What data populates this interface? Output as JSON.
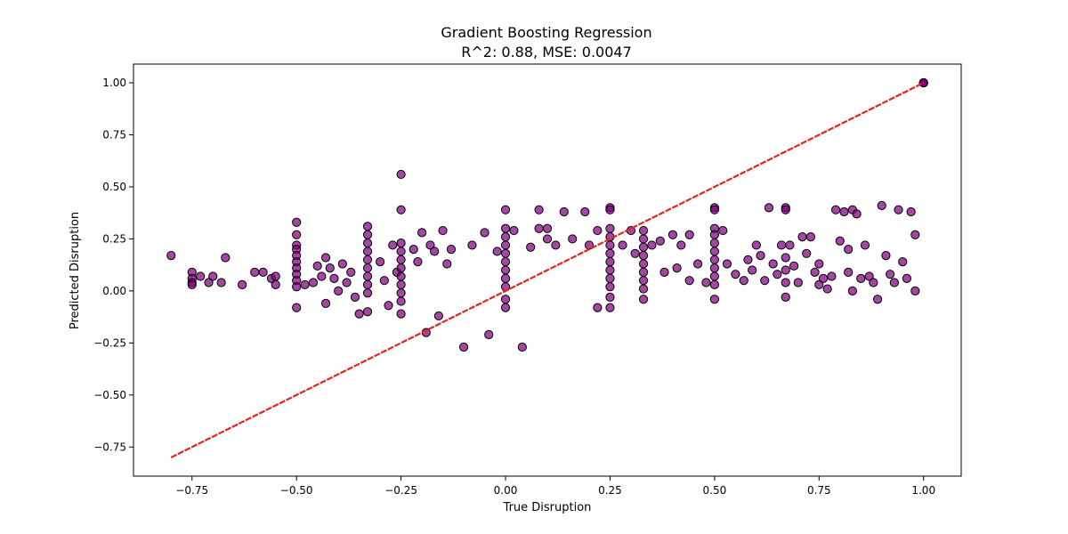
{
  "chart_data": {
    "type": "scatter",
    "title": "Gradient Boosting Regression",
    "subtitle": "R^2: 0.88, MSE: 0.0047",
    "xlabel": "True Disruption",
    "ylabel": "Predicted Disruption",
    "xlim": [
      -0.89,
      1.09
    ],
    "ylim": [
      -0.89,
      1.09
    ],
    "xticks": [
      -0.75,
      -0.5,
      -0.25,
      0.0,
      0.25,
      0.5,
      0.75,
      1.0
    ],
    "xtick_labels": [
      "−0.75",
      "−0.50",
      "−0.25",
      "0.00",
      "0.25",
      "0.50",
      "0.75",
      "1.00"
    ],
    "yticks": [
      -0.75,
      -0.5,
      -0.25,
      0.0,
      0.25,
      0.5,
      0.75,
      1.0
    ],
    "ytick_labels": [
      "−0.75",
      "−0.50",
      "−0.25",
      "0.00",
      "0.25",
      "0.50",
      "0.75",
      "1.00"
    ],
    "grid": false,
    "colors": {
      "points": "#800080",
      "point_edge": "#000000",
      "reference_line": "#e8231c"
    },
    "reference_line": {
      "x": [
        -0.8,
        1.0
      ],
      "y": [
        -0.8,
        1.0
      ],
      "style": "dashed"
    },
    "series": [
      {
        "points": [
          [
            -0.8,
            0.17
          ],
          [
            -0.75,
            0.09
          ],
          [
            -0.75,
            0.06
          ],
          [
            -0.75,
            0.04
          ],
          [
            -0.75,
            0.03
          ],
          [
            -0.73,
            0.07
          ],
          [
            -0.71,
            0.04
          ],
          [
            -0.7,
            0.07
          ],
          [
            -0.68,
            0.04
          ],
          [
            -0.67,
            0.16
          ],
          [
            -0.63,
            0.03
          ],
          [
            -0.6,
            0.09
          ],
          [
            -0.58,
            0.09
          ],
          [
            -0.56,
            0.06
          ],
          [
            -0.55,
            0.03
          ],
          [
            -0.55,
            0.07
          ],
          [
            -0.5,
            0.33
          ],
          [
            -0.5,
            0.27
          ],
          [
            -0.5,
            0.22
          ],
          [
            -0.5,
            0.2
          ],
          [
            -0.5,
            0.17
          ],
          [
            -0.5,
            0.14
          ],
          [
            -0.5,
            0.11
          ],
          [
            -0.5,
            0.08
          ],
          [
            -0.5,
            0.05
          ],
          [
            -0.5,
            0.02
          ],
          [
            -0.5,
            -0.08
          ],
          [
            -0.48,
            0.03
          ],
          [
            -0.46,
            0.04
          ],
          [
            -0.45,
            0.12
          ],
          [
            -0.44,
            0.07
          ],
          [
            -0.43,
            0.16
          ],
          [
            -0.43,
            -0.06
          ],
          [
            -0.42,
            0.11
          ],
          [
            -0.41,
            0.06
          ],
          [
            -0.4,
            0.0
          ],
          [
            -0.39,
            0.13
          ],
          [
            -0.38,
            0.04
          ],
          [
            -0.37,
            0.09
          ],
          [
            -0.36,
            -0.03
          ],
          [
            -0.33,
            0.31
          ],
          [
            -0.33,
            0.27
          ],
          [
            -0.33,
            0.23
          ],
          [
            -0.33,
            0.19
          ],
          [
            -0.33,
            0.15
          ],
          [
            -0.33,
            0.11
          ],
          [
            -0.33,
            0.07
          ],
          [
            -0.33,
            0.03
          ],
          [
            -0.33,
            -0.01
          ],
          [
            -0.33,
            -0.1
          ],
          [
            -0.35,
            -0.11
          ],
          [
            -0.3,
            0.14
          ],
          [
            -0.29,
            0.05
          ],
          [
            -0.28,
            -0.07
          ],
          [
            -0.27,
            0.22
          ],
          [
            -0.26,
            0.09
          ],
          [
            -0.25,
            0.56
          ],
          [
            -0.25,
            0.39
          ],
          [
            -0.25,
            0.23
          ],
          [
            -0.25,
            0.19
          ],
          [
            -0.25,
            0.15
          ],
          [
            -0.25,
            0.11
          ],
          [
            -0.25,
            0.07
          ],
          [
            -0.25,
            0.03
          ],
          [
            -0.25,
            -0.01
          ],
          [
            -0.25,
            -0.05
          ],
          [
            -0.25,
            -0.11
          ],
          [
            -0.22,
            0.2
          ],
          [
            -0.21,
            0.14
          ],
          [
            -0.2,
            0.28
          ],
          [
            -0.19,
            -0.2
          ],
          [
            -0.18,
            0.22
          ],
          [
            -0.17,
            0.19
          ],
          [
            -0.16,
            -0.12
          ],
          [
            -0.15,
            0.29
          ],
          [
            -0.14,
            0.13
          ],
          [
            -0.13,
            0.2
          ],
          [
            -0.1,
            -0.27
          ],
          [
            -0.08,
            0.22
          ],
          [
            -0.05,
            0.28
          ],
          [
            -0.04,
            -0.21
          ],
          [
            -0.02,
            0.19
          ],
          [
            0.0,
            0.39
          ],
          [
            0.0,
            0.3
          ],
          [
            0.0,
            0.26
          ],
          [
            0.0,
            0.22
          ],
          [
            0.0,
            0.18
          ],
          [
            0.0,
            0.14
          ],
          [
            0.0,
            0.1
          ],
          [
            0.0,
            0.06
          ],
          [
            0.0,
            0.02
          ],
          [
            0.0,
            -0.04
          ],
          [
            0.0,
            -0.08
          ],
          [
            0.02,
            0.29
          ],
          [
            0.04,
            -0.27
          ],
          [
            0.06,
            0.21
          ],
          [
            0.08,
            0.3
          ],
          [
            0.08,
            0.39
          ],
          [
            0.1,
            0.25
          ],
          [
            0.1,
            0.3
          ],
          [
            0.12,
            0.22
          ],
          [
            0.14,
            0.38
          ],
          [
            0.16,
            0.25
          ],
          [
            0.19,
            0.38
          ],
          [
            0.2,
            0.22
          ],
          [
            0.22,
            0.29
          ],
          [
            0.22,
            -0.08
          ],
          [
            0.25,
            0.4
          ],
          [
            0.25,
            0.39
          ],
          [
            0.25,
            0.3
          ],
          [
            0.25,
            0.26
          ],
          [
            0.25,
            0.22
          ],
          [
            0.25,
            0.18
          ],
          [
            0.25,
            0.14
          ],
          [
            0.25,
            0.1
          ],
          [
            0.25,
            0.06
          ],
          [
            0.25,
            0.02
          ],
          [
            0.25,
            -0.03
          ],
          [
            0.25,
            -0.08
          ],
          [
            0.28,
            0.22
          ],
          [
            0.3,
            0.29
          ],
          [
            0.31,
            0.18
          ],
          [
            0.33,
            0.29
          ],
          [
            0.33,
            0.25
          ],
          [
            0.33,
            0.21
          ],
          [
            0.33,
            0.17
          ],
          [
            0.33,
            0.13
          ],
          [
            0.33,
            0.09
          ],
          [
            0.33,
            0.05
          ],
          [
            0.33,
            0.01
          ],
          [
            0.33,
            -0.04
          ],
          [
            0.35,
            0.22
          ],
          [
            0.37,
            0.24
          ],
          [
            0.38,
            0.09
          ],
          [
            0.4,
            0.27
          ],
          [
            0.41,
            0.11
          ],
          [
            0.42,
            0.22
          ],
          [
            0.44,
            0.27
          ],
          [
            0.44,
            0.05
          ],
          [
            0.46,
            0.13
          ],
          [
            0.48,
            0.04
          ],
          [
            0.5,
            0.4
          ],
          [
            0.5,
            0.39
          ],
          [
            0.5,
            0.3
          ],
          [
            0.5,
            0.27
          ],
          [
            0.5,
            0.23
          ],
          [
            0.5,
            0.19
          ],
          [
            0.5,
            0.15
          ],
          [
            0.5,
            0.11
          ],
          [
            0.5,
            0.07
          ],
          [
            0.5,
            0.03
          ],
          [
            0.5,
            -0.04
          ],
          [
            0.52,
            0.29
          ],
          [
            0.53,
            0.13
          ],
          [
            0.55,
            0.08
          ],
          [
            0.57,
            0.05
          ],
          [
            0.58,
            0.15
          ],
          [
            0.59,
            0.1
          ],
          [
            0.6,
            0.22
          ],
          [
            0.61,
            0.17
          ],
          [
            0.62,
            0.05
          ],
          [
            0.63,
            0.4
          ],
          [
            0.64,
            0.13
          ],
          [
            0.65,
            0.08
          ],
          [
            0.66,
            0.22
          ],
          [
            0.67,
            0.4
          ],
          [
            0.67,
            0.39
          ],
          [
            0.67,
            0.16
          ],
          [
            0.67,
            0.1
          ],
          [
            0.67,
            0.04
          ],
          [
            0.67,
            -0.03
          ],
          [
            0.68,
            0.22
          ],
          [
            0.69,
            0.12
          ],
          [
            0.7,
            0.04
          ],
          [
            0.71,
            0.26
          ],
          [
            0.72,
            0.18
          ],
          [
            0.73,
            0.26
          ],
          [
            0.74,
            0.09
          ],
          [
            0.75,
            0.13
          ],
          [
            0.75,
            0.03
          ],
          [
            0.76,
            0.06
          ],
          [
            0.77,
            0.01
          ],
          [
            0.78,
            0.07
          ],
          [
            0.79,
            0.39
          ],
          [
            0.8,
            0.24
          ],
          [
            0.81,
            0.38
          ],
          [
            0.82,
            0.2
          ],
          [
            0.82,
            0.09
          ],
          [
            0.83,
            0.0
          ],
          [
            0.83,
            0.39
          ],
          [
            0.84,
            0.37
          ],
          [
            0.85,
            0.06
          ],
          [
            0.86,
            0.22
          ],
          [
            0.87,
            0.07
          ],
          [
            0.88,
            0.04
          ],
          [
            0.89,
            -0.04
          ],
          [
            0.9,
            0.41
          ],
          [
            0.91,
            0.17
          ],
          [
            0.92,
            0.08
          ],
          [
            0.93,
            0.04
          ],
          [
            0.94,
            0.39
          ],
          [
            0.95,
            0.14
          ],
          [
            0.96,
            0.06
          ],
          [
            0.97,
            0.38
          ],
          [
            0.98,
            0.27
          ],
          [
            0.98,
            0.0
          ],
          [
            1.0,
            1.0
          ],
          [
            1.0,
            1.0
          ],
          [
            1.0,
            1.0
          ],
          [
            1.0,
            1.0
          ],
          [
            1.0,
            1.0
          ],
          [
            1.0,
            1.0
          ]
        ]
      }
    ]
  }
}
